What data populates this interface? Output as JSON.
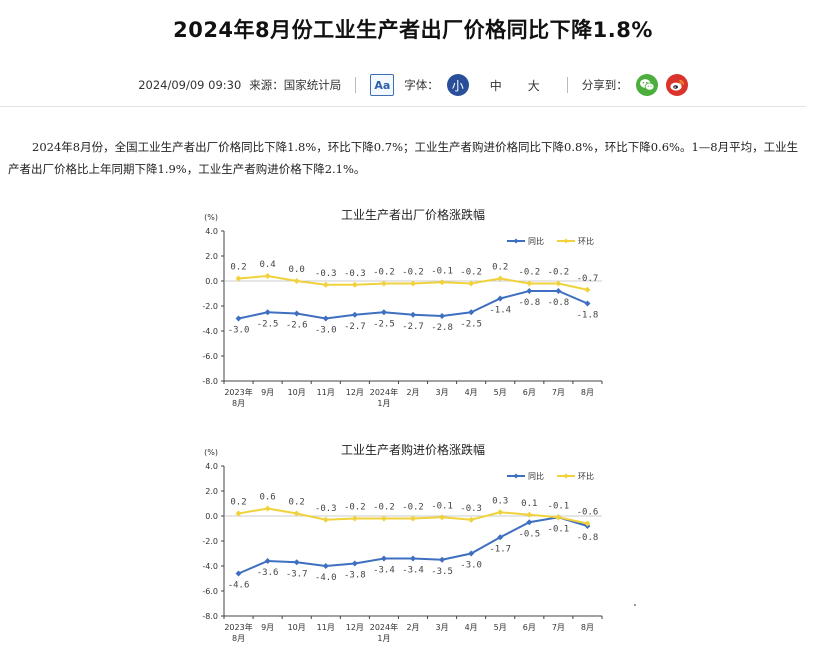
{
  "article": {
    "title": "2024年8月份工业生产者出厂价格同比下降1.8%",
    "datetime": "2024/09/09 09:30",
    "source": "来源：国家统计局",
    "font_label": "字体：",
    "font_icon_text": "Aa",
    "sizes": [
      "小",
      "中",
      "大"
    ],
    "share_label": "分享到：",
    "share_targets": [
      "wechat-icon",
      "weibo-icon"
    ],
    "paragraph": "2024年8月份，全国工业生产者出厂价格同比下降1.8%，环比下降0.7%；工业生产者购进价格同比下降0.8%，环比下降0.6%。1—8月平均，工业生产者出厂价格比上年同期下降1.9%，工业生产者购进价格下降2.1%。"
  },
  "colors": {
    "yoy": "#3e6fc0",
    "mom": "#f0d23c",
    "accent": "#2a4f9a"
  },
  "chart_data": [
    {
      "type": "line",
      "title": "工业生产者出厂价格涨跌幅",
      "ylabel": "(%)",
      "ylim": [
        -8.0,
        4.0
      ],
      "yticks": [
        "4.0",
        "2.0",
        "0.0",
        "-2.0",
        "-4.0",
        "-6.0",
        "-8.0"
      ],
      "categories": [
        "2023年\n8月",
        "9月",
        "10月",
        "11月",
        "12月",
        "2024年\n1月",
        "2月",
        "3月",
        "4月",
        "5月",
        "6月",
        "7月",
        "8月"
      ],
      "legend_position": "top-right",
      "series": [
        {
          "name": "同比",
          "values": [
            -3.0,
            -2.5,
            -2.6,
            -3.0,
            -2.7,
            -2.5,
            -2.7,
            -2.8,
            -2.5,
            -1.4,
            -0.8,
            -0.8,
            -1.8
          ],
          "labels": [
            "-3.0",
            "-2.5",
            "-2.6",
            "-3.0",
            "-2.7",
            "-2.5",
            "-2.7",
            "-2.8",
            "-2.5",
            "-1.4",
            "-0.8",
            "-0.8",
            "-1.8"
          ]
        },
        {
          "name": "环比",
          "values": [
            0.2,
            0.4,
            0.0,
            -0.3,
            -0.3,
            -0.2,
            -0.2,
            -0.1,
            -0.2,
            0.2,
            -0.2,
            -0.2,
            -0.7
          ],
          "labels": [
            "0.2",
            "0.4",
            "0.0",
            "-0.3",
            "-0.3",
            "-0.2",
            "-0.2",
            "-0.1",
            "-0.2",
            "0.2",
            "-0.2",
            "-0.2",
            "-0.7"
          ]
        }
      ]
    },
    {
      "type": "line",
      "title": "工业生产者购进价格涨跌幅",
      "ylabel": "(%)",
      "ylim": [
        -8.0,
        4.0
      ],
      "yticks": [
        "4.0",
        "2.0",
        "0.0",
        "-2.0",
        "-4.0",
        "-6.0",
        "-8.0"
      ],
      "categories": [
        "2023年\n8月",
        "9月",
        "10月",
        "11月",
        "12月",
        "2024年\n1月",
        "2月",
        "3月",
        "4月",
        "5月",
        "6月",
        "7月",
        "8月"
      ],
      "legend_position": "top-right",
      "series": [
        {
          "name": "同比",
          "values": [
            -4.6,
            -3.6,
            -3.7,
            -4.0,
            -3.8,
            -3.4,
            -3.4,
            -3.5,
            -3.0,
            -1.7,
            -0.5,
            -0.1,
            -0.8
          ],
          "labels": [
            "-4.6",
            "-3.6",
            "-3.7",
            "-4.0",
            "-3.8",
            "-3.4",
            "-3.4",
            "-3.5",
            "-3.0",
            "-1.7",
            "-0.5",
            "-0.1",
            "-0.8"
          ]
        },
        {
          "name": "环比",
          "values": [
            0.2,
            0.6,
            0.2,
            -0.3,
            -0.2,
            -0.2,
            -0.2,
            -0.1,
            -0.3,
            0.3,
            0.1,
            -0.1,
            -0.6
          ],
          "labels": [
            "0.2",
            "0.6",
            "0.2",
            "-0.3",
            "-0.2",
            "-0.2",
            "-0.2",
            "-0.1",
            "-0.3",
            "0.3",
            "0.1",
            "-0.1",
            "-0.6"
          ]
        }
      ]
    }
  ]
}
